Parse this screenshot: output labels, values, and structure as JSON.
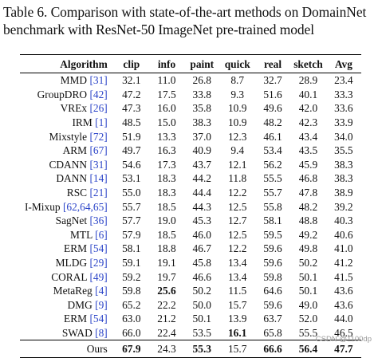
{
  "caption": "Table 6. Comparison with state-of-the-art methods on DomainNet benchmark with ResNet-50 ImageNet pre-trained model",
  "columns": [
    "Algorithm",
    "clip",
    "info",
    "paint",
    "quick",
    "real",
    "sketch",
    "Avg"
  ],
  "rows": [
    {
      "name": "MMD",
      "cite": "[31]",
      "values": [
        "32.1",
        "11.0",
        "26.8",
        "8.7",
        "32.7",
        "28.9",
        "23.4"
      ],
      "bold": []
    },
    {
      "name": "GroupDRO",
      "cite": "[42]",
      "values": [
        "47.2",
        "17.5",
        "33.8",
        "9.3",
        "51.6",
        "40.1",
        "33.3"
      ],
      "bold": []
    },
    {
      "name": "VREx",
      "cite": "[26]",
      "values": [
        "47.3",
        "16.0",
        "35.8",
        "10.9",
        "49.6",
        "42.0",
        "33.6"
      ],
      "bold": []
    },
    {
      "name": "IRM",
      "cite": "[1]",
      "values": [
        "48.5",
        "15.0",
        "38.3",
        "10.9",
        "48.2",
        "42.3",
        "33.9"
      ],
      "bold": []
    },
    {
      "name": "Mixstyle",
      "cite": "[72]",
      "values": [
        "51.9",
        "13.3",
        "37.0",
        "12.3",
        "46.1",
        "43.4",
        "34.0"
      ],
      "bold": []
    },
    {
      "name": "ARM",
      "cite": "[67]",
      "values": [
        "49.7",
        "16.3",
        "40.9",
        "9.4",
        "53.4",
        "43.5",
        "35.5"
      ],
      "bold": []
    },
    {
      "name": "CDANN",
      "cite": "[31]",
      "values": [
        "54.6",
        "17.3",
        "43.7",
        "12.1",
        "56.2",
        "45.9",
        "38.3"
      ],
      "bold": []
    },
    {
      "name": "DANN",
      "cite": "[14]",
      "values": [
        "53.1",
        "18.3",
        "44.2",
        "11.8",
        "55.5",
        "46.8",
        "38.3"
      ],
      "bold": []
    },
    {
      "name": "RSC",
      "cite": "[21]",
      "values": [
        "55.0",
        "18.3",
        "44.4",
        "12.2",
        "55.7",
        "47.8",
        "38.9"
      ],
      "bold": []
    },
    {
      "name": "I-Mixup",
      "cite": "[62,64,65]",
      "values": [
        "55.7",
        "18.5",
        "44.3",
        "12.5",
        "55.8",
        "48.2",
        "39.2"
      ],
      "bold": []
    },
    {
      "name": "SagNet",
      "cite": "[36]",
      "values": [
        "57.7",
        "19.0",
        "45.3",
        "12.7",
        "58.1",
        "48.8",
        "40.3"
      ],
      "bold": []
    },
    {
      "name": "MTL",
      "cite": "[6]",
      "values": [
        "57.9",
        "18.5",
        "46.0",
        "12.5",
        "59.5",
        "49.2",
        "40.6"
      ],
      "bold": []
    },
    {
      "name": "ERM",
      "cite": "[54]",
      "values": [
        "58.1",
        "18.8",
        "46.7",
        "12.2",
        "59.6",
        "49.8",
        "41.0"
      ],
      "bold": []
    },
    {
      "name": "MLDG",
      "cite": "[29]",
      "values": [
        "59.1",
        "19.1",
        "45.8",
        "13.4",
        "59.6",
        "50.2",
        "41.2"
      ],
      "bold": []
    },
    {
      "name": "CORAL",
      "cite": "[49]",
      "values": [
        "59.2",
        "19.7",
        "46.6",
        "13.4",
        "59.8",
        "50.1",
        "41.5"
      ],
      "bold": []
    },
    {
      "name": "MetaReg",
      "cite": "[4]",
      "values": [
        "59.8",
        "25.6",
        "50.2",
        "11.5",
        "64.6",
        "50.1",
        "43.6"
      ],
      "bold": [
        1
      ]
    },
    {
      "name": "DMG",
      "cite": "[9]",
      "values": [
        "65.2",
        "22.2",
        "50.0",
        "15.7",
        "59.6",
        "49.0",
        "43.6"
      ],
      "bold": []
    },
    {
      "name": "ERM",
      "cite": "[54]",
      "values": [
        "63.0",
        "21.2",
        "50.1",
        "13.9",
        "63.7",
        "52.0",
        "44.0"
      ],
      "bold": []
    },
    {
      "name": "SWAD",
      "cite": "[8]",
      "values": [
        "66.0",
        "22.4",
        "53.5",
        "16.1",
        "65.8",
        "55.5",
        "46.5"
      ],
      "bold": [
        3
      ]
    }
  ],
  "ours": {
    "name": "Ours",
    "values": [
      "67.9",
      "24.3",
      "55.3",
      "15.7",
      "66.6",
      "56.4",
      "47.7"
    ],
    "bold": [
      0,
      2,
      4,
      5,
      6
    ]
  },
  "watermark": "CSDN @1100dp"
}
